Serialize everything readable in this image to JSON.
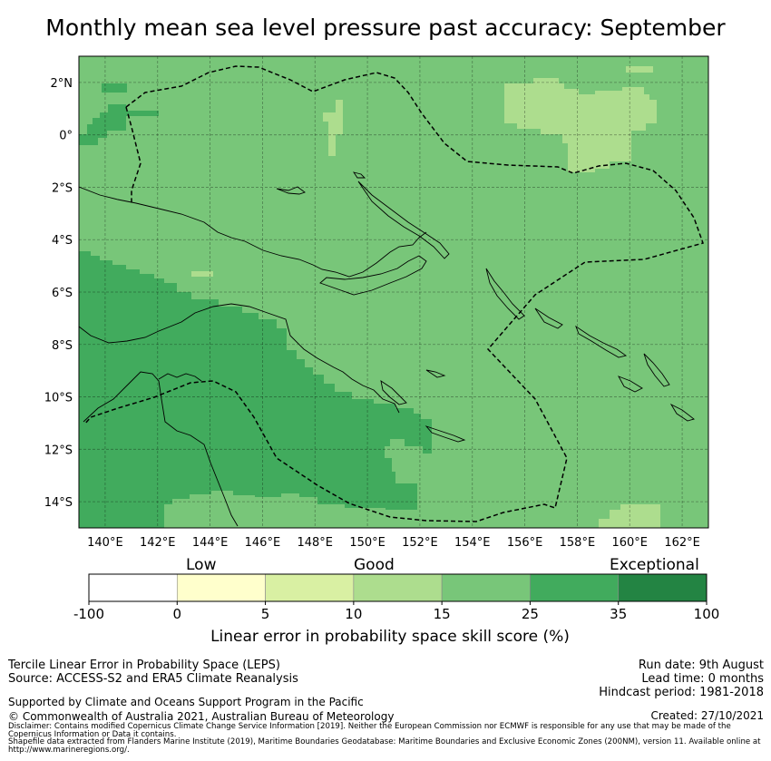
{
  "title": "Monthly mean sea level pressure past accuracy: September",
  "map": {
    "lat_ticks": [
      "2°N",
      "0°",
      "2°S",
      "4°S",
      "6°S",
      "8°S",
      "10°S",
      "12°S",
      "14°S"
    ],
    "lon_ticks": [
      "140°E",
      "142°E",
      "144°E",
      "146°E",
      "148°E",
      "150°E",
      "152°E",
      "154°E",
      "156°E",
      "158°E",
      "160°E",
      "162°E"
    ],
    "lat_range": [
      -15,
      3
    ],
    "lon_range": [
      139,
      163
    ],
    "grid": true
  },
  "colorbar": {
    "categories": [
      "Low",
      "Good",
      "Exceptional"
    ],
    "tick_labels": [
      "-100",
      "0",
      "5",
      "10",
      "15",
      "25",
      "35",
      "100"
    ],
    "colors": [
      "#ffffff",
      "#ffffcc",
      "#d9f0a3",
      "#addd8e",
      "#78c679",
      "#41ab5d",
      "#238443"
    ],
    "label": "Linear error in probability space skill score (%)"
  },
  "info": {
    "method": "Tercile Linear Error in Probability Space (LEPS)",
    "source": "Source: ACCESS-S2 and ERA5 Climate Reanalysis",
    "run_date": "Run date: 9th August",
    "lead_time": "Lead time: 0 months",
    "hindcast": "Hindcast period: 1981-2018",
    "support": "Supported by Climate and Oceans Support Program in the Pacific",
    "copyright": "© Commonwealth of Australia 2021, Australian Bureau of Meteorology",
    "created": "Created: 27/10/2021",
    "disclaimer": "Disclaimer: Contains modified Copernicus Climate Change Service Information [2019]. Neither the European Commission nor ECMWF is responsible for any use that may be made of the Copernicus Information or Data it contains.",
    "shapefile": "Shapefile data extracted from Flanders Marine Institute (2019), Maritime Boundaries Geodatabase: Maritime Boundaries and Exclusive Economic Zones (200NM), version 11. Available online at http://www.marineregions.org/."
  }
}
